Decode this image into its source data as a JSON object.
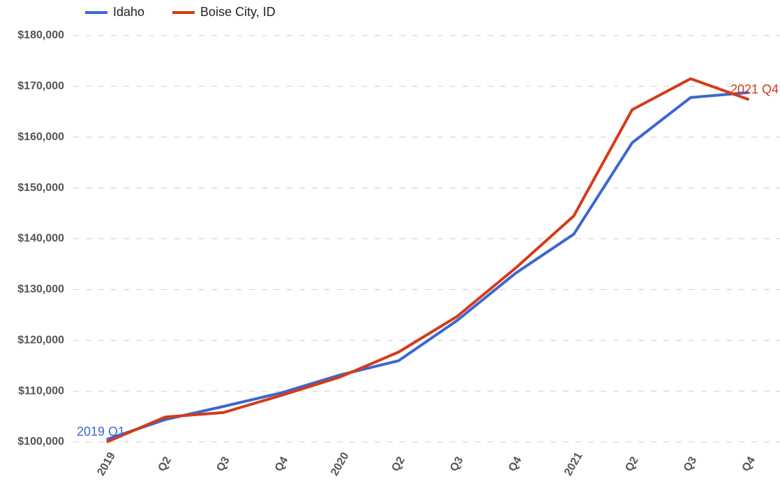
{
  "chart_data": {
    "type": "line",
    "categories": [
      "2019",
      "Q2",
      "Q3",
      "Q4",
      "2020",
      "Q2",
      "Q3",
      "Q4",
      "2021",
      "Q2",
      "Q3",
      "Q4"
    ],
    "series": [
      {
        "name": "Idaho",
        "color": "#3c67cf",
        "values": [
          100500,
          104400,
          107000,
          109700,
          113200,
          116000,
          123900,
          133200,
          140900,
          158900,
          167800,
          168800
        ]
      },
      {
        "name": "Boise City, ID",
        "color": "#d53a18",
        "values": [
          100000,
          104900,
          105800,
          109200,
          112800,
          117700,
          124700,
          134200,
          144500,
          165400,
          171500,
          167400
        ]
      }
    ],
    "ylim": [
      100000,
      180000
    ],
    "yticks": [
      {
        "value": 100000,
        "label": "$100,000"
      },
      {
        "value": 110000,
        "label": "$110,000"
      },
      {
        "value": 120000,
        "label": "$120,000"
      },
      {
        "value": 130000,
        "label": "$130,000"
      },
      {
        "value": 140000,
        "label": "$140,000"
      },
      {
        "value": 150000,
        "label": "$150,000"
      },
      {
        "value": 160000,
        "label": "$160,000"
      },
      {
        "value": 170000,
        "label": "$170,000"
      },
      {
        "value": 180000,
        "label": "$180,000"
      }
    ],
    "grid": true,
    "legend": "top",
    "annotations": [
      {
        "text": "2019 Q1",
        "color": "#3c67cf"
      },
      {
        "text": "2021 Q4",
        "color": "#d53a18"
      }
    ]
  }
}
